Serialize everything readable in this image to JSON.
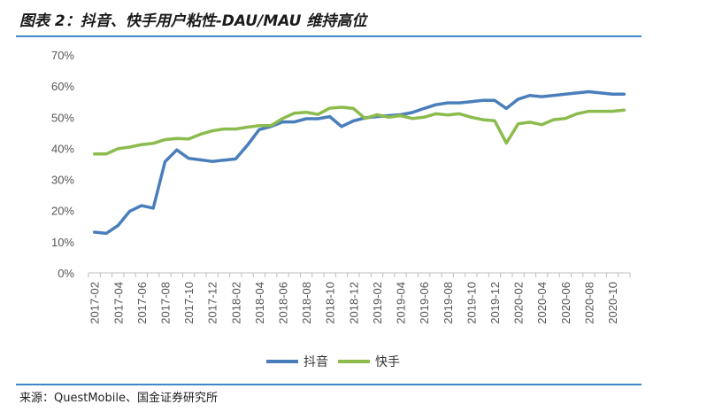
{
  "title": "图表 2：抖音、快手用户粘性-DAU/MAU 维持高位",
  "source": "来源：QuestMobile、国金证券研究所",
  "colors": {
    "rule": "#3f87c7",
    "douyin": "#4a7ebb",
    "kuaishou": "#8cbb4e"
  },
  "chart_data": {
    "type": "line",
    "title": "",
    "xlabel": "",
    "ylabel": "",
    "ylim": [
      0,
      70
    ],
    "yticks": [
      "0%",
      "10%",
      "20%",
      "30%",
      "40%",
      "50%",
      "60%",
      "70%"
    ],
    "legend_position": "bottom-center",
    "grid": false,
    "x": [
      "2017-02",
      "2017-03",
      "2017-04",
      "2017-05",
      "2017-06",
      "2017-07",
      "2017-08",
      "2017-09",
      "2017-10",
      "2017-11",
      "2017-12",
      "2018-01",
      "2018-02",
      "2018-03",
      "2018-04",
      "2018-05",
      "2018-06",
      "2018-07",
      "2018-08",
      "2018-09",
      "2018-10",
      "2018-11",
      "2018-12",
      "2019-01",
      "2019-02",
      "2019-03",
      "2019-04",
      "2019-05",
      "2019-06",
      "2019-07",
      "2019-08",
      "2019-09",
      "2019-10",
      "2019-11",
      "2019-12",
      "2020-01",
      "2020-02",
      "2020-03",
      "2020-04",
      "2020-05",
      "2020-06",
      "2020-07",
      "2020-08",
      "2020-09",
      "2020-10",
      "2020-11"
    ],
    "xtick_labels": [
      "2017-02",
      "2017-04",
      "2017-06",
      "2017-08",
      "2017-10",
      "2017-12",
      "2018-02",
      "2018-04",
      "2018-06",
      "2018-08",
      "2018-10",
      "2018-12",
      "2019-02",
      "2019-04",
      "2019-06",
      "2019-08",
      "2019-10",
      "2019-12",
      "2020-02",
      "2020-04",
      "2020-06",
      "2020-08",
      "2020-10"
    ],
    "series": [
      {
        "name": "抖音",
        "values": [
          13.1,
          12.7,
          15.2,
          19.8,
          21.6,
          20.8,
          35.7,
          39.5,
          36.8,
          36.3,
          35.8,
          36.2,
          36.6,
          41.0,
          46.0,
          47.0,
          48.5,
          48.5,
          49.5,
          49.5,
          50.2,
          47.0,
          48.8,
          49.8,
          50.2,
          50.5,
          50.8,
          51.5,
          52.8,
          54.0,
          54.6,
          54.6,
          55.0,
          55.4,
          55.4,
          52.8,
          55.8,
          57.0,
          56.6,
          57.0,
          57.4,
          57.8,
          58.2,
          57.8,
          57.4,
          57.4
        ]
      },
      {
        "name": "快手",
        "values": [
          38.2,
          38.2,
          39.9,
          40.4,
          41.2,
          41.6,
          42.8,
          43.2,
          43.0,
          44.5,
          45.6,
          46.2,
          46.2,
          46.8,
          47.3,
          47.3,
          49.6,
          51.3,
          51.6,
          50.9,
          52.9,
          53.2,
          52.8,
          49.6,
          50.8,
          50.0,
          50.5,
          49.6,
          50.0,
          51.1,
          50.7,
          51.1,
          50.0,
          49.2,
          48.9,
          41.7,
          47.9,
          48.4,
          47.6,
          49.2,
          49.6,
          51.1,
          51.9,
          51.9,
          51.9,
          52.3
        ]
      }
    ]
  }
}
